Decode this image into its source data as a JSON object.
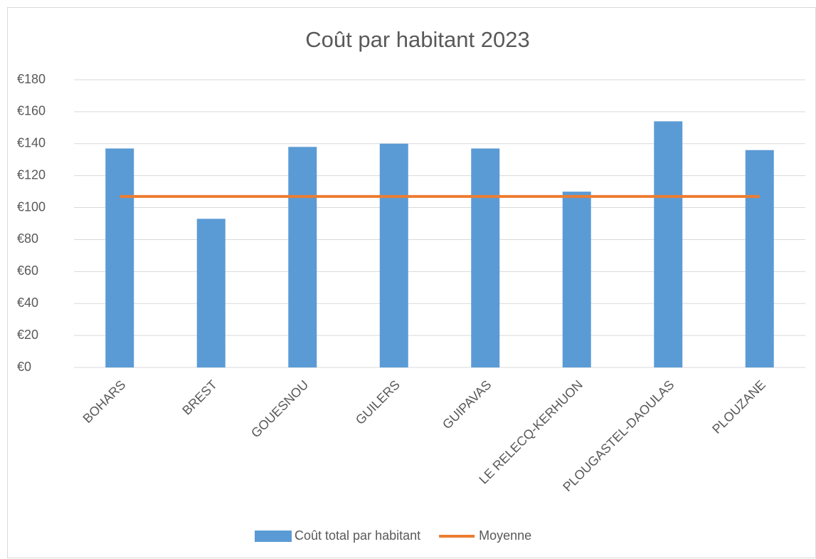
{
  "chart_data": {
    "type": "bar",
    "title": "Coût par habitant 2023",
    "categories": [
      "BOHARS",
      "BREST",
      "GOUESNOU",
      "GUILERS",
      "GUIPAVAS",
      "LE RELECQ-KERHUON",
      "PLOUGASTEL-DAOULAS",
      "PLOUZANE"
    ],
    "series": [
      {
        "name": "Coût total par habitant",
        "type": "bar",
        "color": "#5b9bd5",
        "values": [
          137,
          93,
          138,
          140,
          137,
          110,
          154,
          136
        ]
      },
      {
        "name": "Moyenne",
        "type": "line",
        "color": "#ed7d31",
        "values": [
          107,
          107,
          107,
          107,
          107,
          107,
          107,
          107
        ]
      }
    ],
    "ylim": [
      0,
      180
    ],
    "yticks": [
      {
        "value": 0,
        "label": "€0"
      },
      {
        "value": 20,
        "label": "€20"
      },
      {
        "value": 40,
        "label": "€40"
      },
      {
        "value": 60,
        "label": "€60"
      },
      {
        "value": 80,
        "label": "€80"
      },
      {
        "value": 100,
        "label": "€100"
      },
      {
        "value": 120,
        "label": "€120"
      },
      {
        "value": 140,
        "label": "€140"
      },
      {
        "value": 160,
        "label": "€160"
      },
      {
        "value": 180,
        "label": "€180"
      }
    ],
    "grid": true,
    "legend": "bottom"
  }
}
